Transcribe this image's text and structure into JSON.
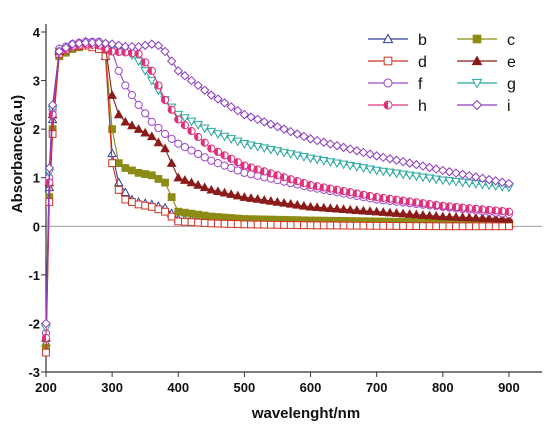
{
  "chart_data": {
    "type": "line",
    "xlabel": "wavelenght/nm",
    "ylabel": "Absorbance(a.u)",
    "xlim": [
      200,
      950
    ],
    "ylim": [
      -3,
      4
    ],
    "xticks": [
      "200",
      "300",
      "400",
      "500",
      "600",
      "700",
      "800",
      "900"
    ],
    "yticks": [
      "-3",
      "-2",
      "-1",
      "0",
      "1",
      "2",
      "3",
      "4"
    ],
    "grid": false,
    "legend_position": "top-right",
    "series": [
      {
        "name": "b",
        "color": "#2e3f9e",
        "marker": "triangle-up-open",
        "x": [
          200,
          205,
          210,
          220,
          240,
          260,
          280,
          290,
          300,
          310,
          320,
          330,
          340,
          360,
          380,
          400,
          450,
          500,
          600,
          700,
          800,
          900
        ],
        "y": [
          -2.4,
          0.8,
          2.2,
          3.65,
          3.7,
          3.75,
          3.7,
          3.5,
          1.5,
          0.9,
          0.7,
          0.55,
          0.5,
          0.45,
          0.38,
          0.15,
          0.1,
          0.08,
          0.06,
          0.05,
          0.05,
          0.04
        ]
      },
      {
        "name": "c",
        "color": "#8c8c14",
        "marker": "square-filled",
        "x": [
          200,
          205,
          210,
          220,
          240,
          260,
          280,
          290,
          300,
          310,
          320,
          340,
          360,
          380,
          400,
          450,
          500,
          600,
          700,
          800,
          900
        ],
        "y": [
          -2.5,
          0.6,
          2.0,
          3.5,
          3.65,
          3.72,
          3.7,
          3.6,
          2.0,
          1.3,
          1.2,
          1.1,
          1.05,
          0.9,
          0.3,
          0.2,
          0.15,
          0.12,
          0.1,
          0.08,
          0.07
        ]
      },
      {
        "name": "d",
        "color": "#cc3322",
        "marker": "square-open",
        "x": [
          200,
          205,
          210,
          220,
          240,
          260,
          280,
          290,
          300,
          310,
          320,
          340,
          360,
          380,
          400,
          450,
          500,
          600,
          700,
          800,
          900
        ],
        "y": [
          -2.6,
          0.5,
          1.9,
          3.55,
          3.7,
          3.72,
          3.65,
          3.5,
          1.3,
          0.75,
          0.55,
          0.45,
          0.4,
          0.3,
          0.1,
          0.06,
          0.04,
          0.02,
          0.01,
          0.0,
          0.0
        ]
      },
      {
        "name": "e",
        "color": "#8b1a1a",
        "marker": "triangle-up-filled",
        "x": [
          200,
          205,
          210,
          220,
          240,
          260,
          280,
          290,
          300,
          310,
          320,
          340,
          360,
          380,
          400,
          450,
          500,
          600,
          700,
          800,
          900
        ],
        "y": [
          -2.3,
          0.9,
          2.3,
          3.6,
          3.75,
          3.8,
          3.75,
          3.7,
          2.7,
          2.3,
          2.15,
          2.0,
          1.85,
          1.6,
          1.0,
          0.75,
          0.6,
          0.4,
          0.3,
          0.2,
          0.15
        ]
      },
      {
        "name": "f",
        "color": "#9c4ac8",
        "marker": "circle-open",
        "x": [
          200,
          205,
          210,
          220,
          240,
          260,
          280,
          290,
          300,
          310,
          320,
          340,
          360,
          380,
          400,
          450,
          500,
          600,
          700,
          800,
          900
        ],
        "y": [
          -2.2,
          1.0,
          2.4,
          3.65,
          3.75,
          3.8,
          3.8,
          3.75,
          3.6,
          3.2,
          2.9,
          2.5,
          2.15,
          1.9,
          1.7,
          1.35,
          1.1,
          0.8,
          0.55,
          0.4,
          0.25
        ]
      },
      {
        "name": "g",
        "color": "#2aa8a0",
        "marker": "triangle-down-open",
        "x": [
          200,
          205,
          210,
          220,
          240,
          260,
          280,
          300,
          320,
          340,
          360,
          380,
          400,
          450,
          500,
          600,
          700,
          800,
          900
        ],
        "y": [
          -2.1,
          1.1,
          2.4,
          3.6,
          3.7,
          3.75,
          3.75,
          3.7,
          3.65,
          3.4,
          3.0,
          2.6,
          2.3,
          1.95,
          1.7,
          1.4,
          1.15,
          0.95,
          0.8
        ]
      },
      {
        "name": "h",
        "color": "#e0307a",
        "marker": "circle-half",
        "x": [
          200,
          205,
          210,
          220,
          240,
          260,
          280,
          300,
          320,
          340,
          360,
          380,
          400,
          450,
          500,
          600,
          700,
          800,
          900
        ],
        "y": [
          -2.3,
          0.9,
          2.3,
          3.6,
          3.7,
          3.75,
          3.72,
          3.6,
          3.58,
          3.55,
          3.2,
          2.6,
          2.2,
          1.6,
          1.25,
          0.85,
          0.6,
          0.42,
          0.3
        ]
      },
      {
        "name": "i",
        "color": "#8b3cc0",
        "marker": "diamond-open",
        "x": [
          200,
          205,
          210,
          220,
          240,
          260,
          280,
          300,
          320,
          340,
          360,
          370,
          380,
          400,
          450,
          500,
          600,
          700,
          800,
          900
        ],
        "y": [
          -2.0,
          1.2,
          2.5,
          3.6,
          3.75,
          3.78,
          3.78,
          3.75,
          3.7,
          3.7,
          3.75,
          3.72,
          3.6,
          3.2,
          2.7,
          2.3,
          1.8,
          1.45,
          1.15,
          0.88
        ]
      }
    ]
  }
}
